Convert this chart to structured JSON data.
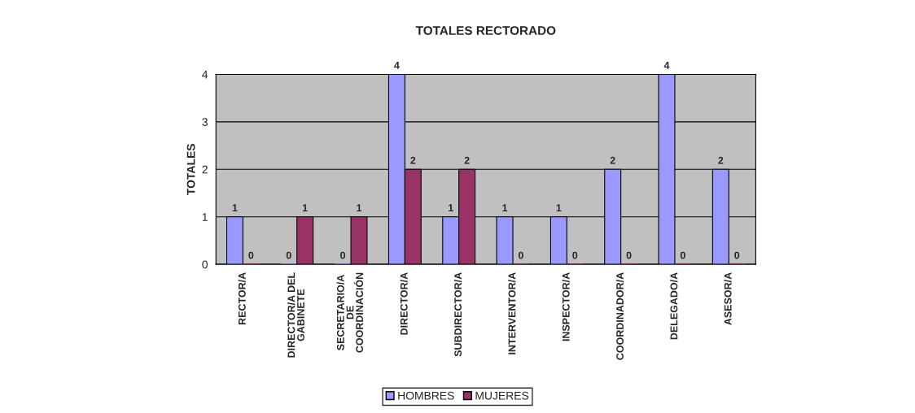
{
  "chart_data": {
    "type": "bar",
    "title": "TOTALES RECTORADO",
    "ylabel": "TOTALES",
    "categories": [
      "RECTOR/A",
      "DIRECTOR/A DEL\nGABINETE",
      "SECRETARIO/A\nDE\nCOORDINACIÓN",
      "DIRECTOR/A",
      "SUBDIRECTOR/A",
      "INTERVENTOR/A",
      "INSPECTOR/A",
      "COORDINADOR/A",
      "DELEGADO/A",
      "ASESOR/A"
    ],
    "series": [
      {
        "name": "HOMBRES",
        "color": "#9999ff",
        "values": [
          1,
          0,
          0,
          4,
          1,
          1,
          1,
          2,
          4,
          2
        ]
      },
      {
        "name": "MUJERES",
        "color": "#993366",
        "values": [
          0,
          1,
          1,
          2,
          2,
          0,
          0,
          0,
          0,
          0
        ]
      }
    ],
    "ylim": [
      0,
      4
    ],
    "yticks": [
      0,
      1,
      2,
      3,
      4
    ],
    "grid": "y",
    "legend": "bottom",
    "data_labels": true
  }
}
